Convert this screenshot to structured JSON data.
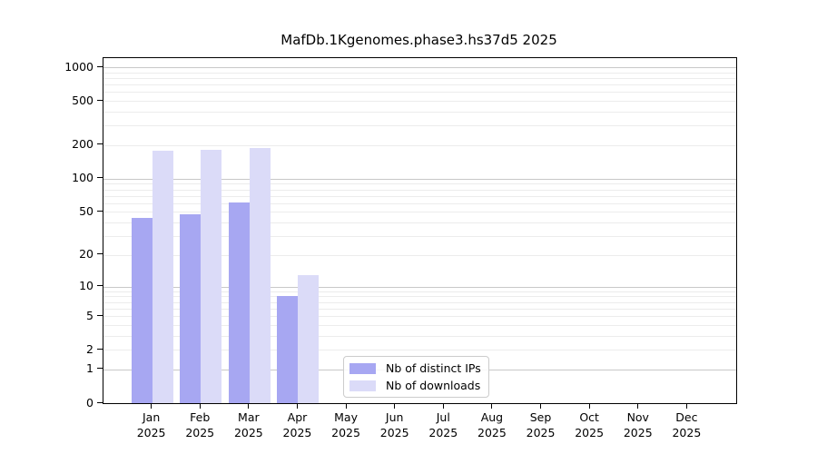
{
  "title": "MafDb.1Kgenomes.phase3.hs37d5 2025",
  "colors": {
    "bar_distinct_ips": "#a7a7f2",
    "bar_downloads": "#dbdbf8",
    "grid_major": "#c8c8c8",
    "grid_minor": "#ececec",
    "spine": "#000000",
    "text": "#000000",
    "legend_border": "#cccccc"
  },
  "chart_data": {
    "type": "bar",
    "title": "MafDb.1Kgenomes.phase3.hs37d5 2025",
    "xlabel": "",
    "ylabel": "",
    "y_axis_scale": "log-like: position proportional to log10(value+1)",
    "y_ticks": [
      0,
      1,
      2,
      5,
      10,
      20,
      50,
      100,
      200,
      500,
      1000
    ],
    "y_minor_gridlines": [
      2,
      3,
      4,
      5,
      6,
      7,
      8,
      9,
      20,
      30,
      40,
      50,
      60,
      70,
      80,
      90,
      200,
      300,
      400,
      500,
      600,
      700,
      800,
      900
    ],
    "y_major_gridlines": [
      1,
      10,
      100,
      1000
    ],
    "ylim": [
      0,
      1200
    ],
    "grid": true,
    "categories": [
      "Jan",
      "Feb",
      "Mar",
      "Apr",
      "May",
      "Jun",
      "Jul",
      "Aug",
      "Sep",
      "Oct",
      "Nov",
      "Dec"
    ],
    "year_label": "2025",
    "series": [
      {
        "name": "Nb of distinct IPs",
        "color": "#a7a7f2",
        "values": [
          44,
          48,
          61,
          8,
          0,
          0,
          0,
          0,
          0,
          0,
          0,
          0
        ]
      },
      {
        "name": "Nb of downloads",
        "color": "#dbdbf8",
        "values": [
          179,
          182,
          190,
          13,
          0,
          0,
          0,
          0,
          0,
          0,
          0,
          0
        ]
      }
    ],
    "legend_position": "lower center"
  }
}
